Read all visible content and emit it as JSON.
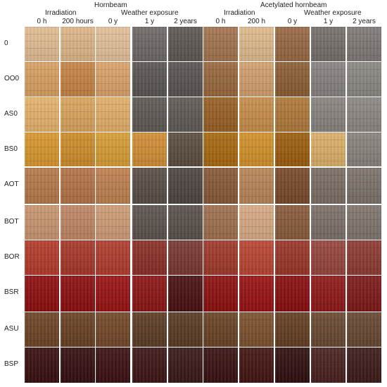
{
  "header": {
    "left_group": "Hornbeam",
    "right_group": "Acetylated hornbeam",
    "left_sub": {
      "irradiation": "Irradiation",
      "weather": "Weather exposure"
    },
    "right_sub": {
      "irradiation": "Irradiation",
      "weather": "Weather exposure"
    },
    "columns": [
      "0 h",
      "200 hours",
      "0 y",
      "1 y",
      "2 years",
      "0 h",
      "200 h",
      "0 y",
      "1 y",
      "2 years"
    ]
  },
  "rows": [
    {
      "label": "0",
      "colors": [
        "#e2bd93",
        "#dfb789",
        "#e3c19c",
        "#6f6a67",
        "#5f5955",
        "#a57550",
        "#e0bb8e",
        "#9a6a45",
        "#77706c",
        "#807a77"
      ]
    },
    {
      "label": "OO0",
      "colors": [
        "#d9a162",
        "#c88447",
        "#dba36a",
        "#5c5755",
        "#5a5552",
        "#9a6a3e",
        "#d3a070",
        "#8e5f36",
        "#888380",
        "#8c8884"
      ]
    },
    {
      "label": "AS0",
      "colors": [
        "#e6b46e",
        "#daa55e",
        "#e3b06a",
        "#5f5a56",
        "#615b57",
        "#9a6126",
        "#c98e4b",
        "#b07a3c",
        "#8a8480",
        "#8d8884"
      ]
    },
    {
      "label": "BS0",
      "colors": [
        "#d9982f",
        "#cf8e2c",
        "#d99e38",
        "#d28f36",
        "#5c4f42",
        "#a96a12",
        "#d4922c",
        "#9d5f10",
        "#dcb06a",
        "#8a847e"
      ]
    },
    {
      "label": "AOT",
      "colors": [
        "#b77a4a",
        "#b47449",
        "#bf8150",
        "#5a4f48",
        "#4f4642",
        "#8a5a38",
        "#b98658",
        "#7a4a2c",
        "#7c6f66",
        "#7d736c"
      ]
    },
    {
      "label": "BOT",
      "colors": [
        "#c99771",
        "#c08865",
        "#cf9d77",
        "#5d544f",
        "#5a524d",
        "#a1714f",
        "#d8ab85",
        "#8a5c3c",
        "#7d716a",
        "#81766f"
      ]
    },
    {
      "label": "BOR",
      "colors": [
        "#b53c2c",
        "#a8382b",
        "#b13d2e",
        "#8c3028",
        "#7a3a33",
        "#a13a2b",
        "#bb4634",
        "#9b3629",
        "#97463d",
        "#8e3c33"
      ]
    },
    {
      "label": "BSR",
      "colors": [
        "#900f10",
        "#8d1012",
        "#9a1414",
        "#8e1617",
        "#4a1212",
        "#8f1111",
        "#9a1314",
        "#8a0f10",
        "#901a1a",
        "#7e1a1a"
      ]
    },
    {
      "label": "ASU",
      "colors": [
        "#6e4526",
        "#6a4224",
        "#74492a",
        "#5d3d26",
        "#5a3c25",
        "#6a4427",
        "#7e5230",
        "#643f23",
        "#6a4a33",
        "#684834"
      ]
    },
    {
      "label": "BSP",
      "colors": [
        "#3a1010",
        "#351012",
        "#3d1213",
        "#3e1716",
        "#3a1a18",
        "#3a1312",
        "#441614",
        "#321011",
        "#4a2220",
        "#3e1c1a"
      ]
    }
  ]
}
